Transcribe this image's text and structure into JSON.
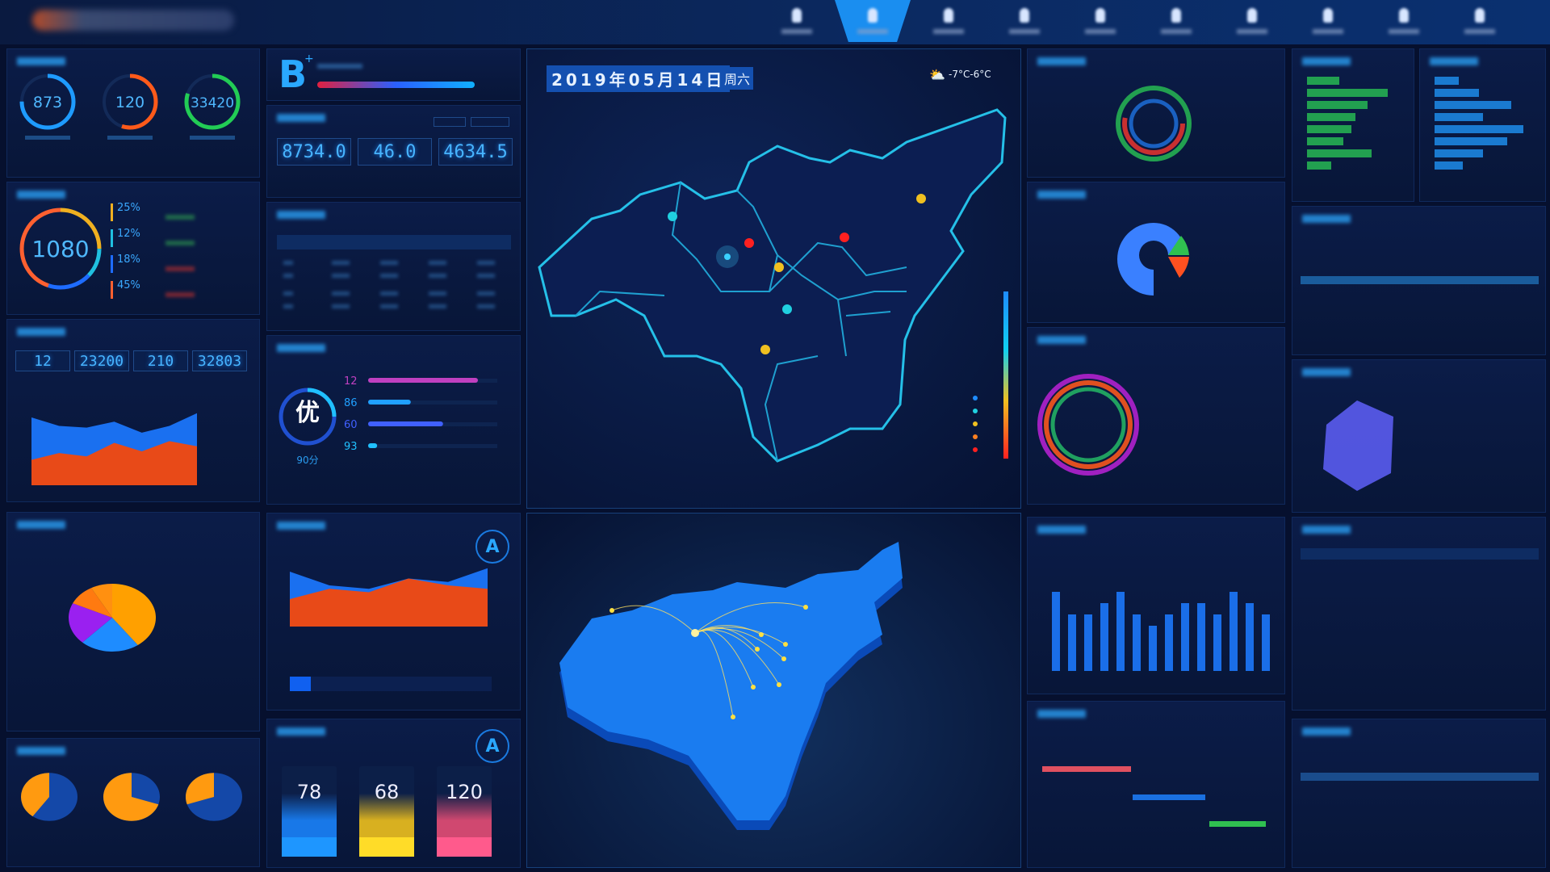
{
  "header": {
    "nav_count": 10,
    "active_index": 1
  },
  "left": {
    "gauges": [
      {
        "value": "873",
        "color": "#1e9bff",
        "fraction": 0.75
      },
      {
        "value": "120",
        "color": "#ff5a1a",
        "fraction": 0.55
      },
      {
        "value": "33420",
        "color": "#22cc55",
        "fraction": 0.8
      }
    ],
    "cost": {
      "value": "1080",
      "items": [
        {
          "pct": "25%",
          "color": "#f0b020"
        },
        {
          "pct": "12%",
          "color": "#20c0e0"
        },
        {
          "pct": "18%",
          "color": "#1e6cff"
        },
        {
          "pct": "45%",
          "color": "#ff6030"
        }
      ]
    },
    "stats": [
      "12",
      "23200",
      "210",
      "32803"
    ],
    "area": {
      "series_a": [
        80,
        70,
        68,
        75,
        62,
        70,
        85
      ],
      "series_b": [
        30,
        38,
        34,
        50,
        40,
        52,
        46
      ]
    },
    "pie": [
      {
        "value": 40,
        "color": "#ffa000"
      },
      {
        "value": 22,
        "color": "#1e8cff"
      },
      {
        "value": 20,
        "color": "#9a20f0"
      },
      {
        "value": 10,
        "color": "#ff7a10"
      },
      {
        "value": 8,
        "color": "#ff9010"
      }
    ],
    "small_pies": [
      {
        "orange": 0.4
      },
      {
        "orange": 0.7
      },
      {
        "orange": 0.3
      }
    ]
  },
  "second": {
    "grade": "B",
    "grade_sup": "+",
    "values": [
      "8734.0",
      "46.0",
      "4634.5"
    ],
    "rating": {
      "char": "优",
      "score": "90分",
      "bars": [
        {
          "num": "12",
          "fill": 0.85,
          "color": "#c040c0"
        },
        {
          "num": "86",
          "fill": 0.33,
          "color": "#20a0ff"
        },
        {
          "num": "60",
          "fill": 0.58,
          "color": "#4060ff"
        },
        {
          "num": "93",
          "fill": 0.07,
          "color": "#20c0ff"
        }
      ]
    },
    "quality_grade": "A",
    "equip_grade": "A",
    "cards": [
      {
        "value": "78",
        "color": "#1878e8"
      },
      {
        "value": "68",
        "color": "#d8b020"
      },
      {
        "value": "120",
        "color": "#d04870"
      }
    ]
  },
  "map": {
    "date": "2019年05月14日",
    "weekday": "周六",
    "weather": "-7°C-6°C"
  },
  "right": {
    "bars": [
      7,
      5,
      5,
      6,
      7,
      5,
      4,
      5,
      6,
      6,
      5,
      7,
      6,
      5
    ],
    "legend_colors": [
      "#1e8cff",
      "#20d0e0",
      "#f0c020",
      "#ff8020",
      "#ff2020"
    ]
  }
}
